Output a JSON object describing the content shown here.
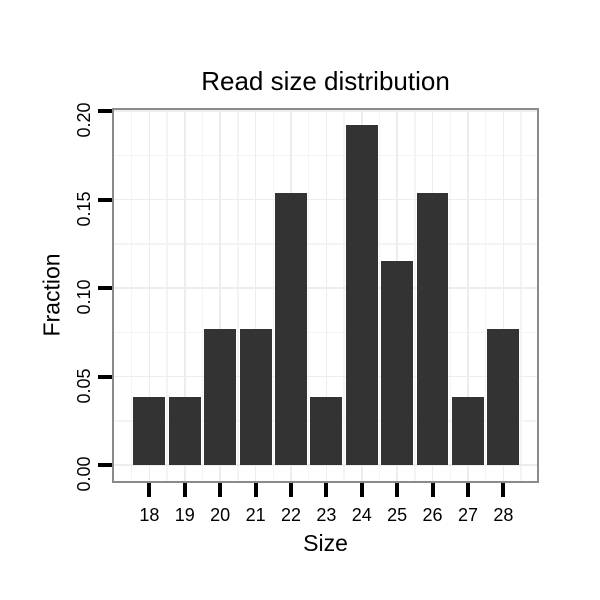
{
  "chart_data": {
    "type": "bar",
    "title": "Read size distribution",
    "xlabel": "Size",
    "ylabel": "Fraction",
    "categories": [
      18,
      19,
      20,
      21,
      22,
      23,
      24,
      25,
      26,
      27,
      28
    ],
    "values": [
      0.0385,
      0.0385,
      0.0769,
      0.0769,
      0.1538,
      0.0385,
      0.1923,
      0.1154,
      0.1538,
      0.0385,
      0.0769
    ],
    "x_tick_labels": [
      "18",
      "19",
      "20",
      "21",
      "22",
      "23",
      "24",
      "25",
      "26",
      "27",
      "28"
    ],
    "y_ticks": [
      0,
      0.05,
      0.1,
      0.15,
      0.2
    ],
    "y_tick_labels": [
      "0.00",
      "0.05",
      "0.10",
      "0.15",
      "0.20"
    ],
    "x_minor_ticks": [
      17.5,
      18.5,
      19.5,
      20.5,
      21.5,
      22.5,
      23.5,
      24.5,
      25.5,
      26.5,
      27.5,
      28.5
    ],
    "y_minor_ticks": [
      0.025,
      0.075,
      0.125,
      0.175
    ],
    "xlim": [
      17.0,
      28.95
    ],
    "ylim": [
      -0.009,
      0.2006
    ],
    "bar_width": 0.9,
    "grid": true,
    "legend": "none",
    "colors": {
      "bar": "#333333",
      "panel_border": "#8a8a8a",
      "grid_major": "#ededed",
      "grid_minor": "#f4f4f4",
      "tick": "#000000",
      "text": "#000000",
      "background": "#ffffff"
    }
  }
}
